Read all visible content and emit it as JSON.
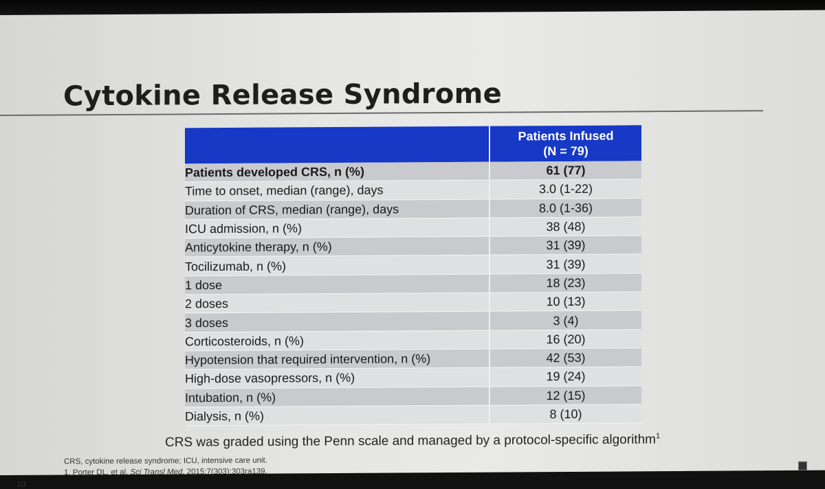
{
  "title": "Cytokine Release Syndrome",
  "table": {
    "header_label": "",
    "header_value_line1": "Patients Infused",
    "header_value_line2": "(N = 79)",
    "rows": [
      {
        "label": "Patients developed CRS, n (%)",
        "value": "61 (77)"
      },
      {
        "label": "Time to onset, median (range), days",
        "value": "3.0 (1-22)"
      },
      {
        "label": "Duration of CRS, median (range), days",
        "value": "8.0 (1-36)"
      },
      {
        "label": "ICU admission, n (%)",
        "value": "38 (48)"
      },
      {
        "label": "Anticytokine therapy, n (%)",
        "value": "31 (39)"
      },
      {
        "label": "Tocilizumab, n (%)",
        "value": "31 (39)"
      },
      {
        "label": "1 dose",
        "value": "18 (23)"
      },
      {
        "label": "2 doses",
        "value": "10 (13)"
      },
      {
        "label": "3 doses",
        "value": "3 (4)"
      },
      {
        "label": "Corticosteroids, n (%)",
        "value": "16 (20)"
      },
      {
        "label": "Hypotension that required intervention, n (%)",
        "value": "42 (53)"
      },
      {
        "label": "High-dose vasopressors, n (%)",
        "value": "19 (24)"
      },
      {
        "label": "Intubation, n (%)",
        "value": "12 (15)"
      },
      {
        "label": "Dialysis, n (%)",
        "value": "8 (10)"
      }
    ]
  },
  "note": "CRS was graded using the Penn scale and managed by a protocol-specific algorithm",
  "note_superscript": "1",
  "footnotes": {
    "abbrev": "CRS, cytokine release syndrome; ICU, intensive care unit.",
    "ref_prefix": "1.  Porter DL, et al. ",
    "ref_journal": "Sci Transl Med.",
    "ref_suffix": " 2015;7(303):303ra139."
  },
  "page_number": "10",
  "colors": {
    "header_blue": "#1739c6",
    "row_dark": "#c9cace",
    "row_light": "#dfe0e2"
  }
}
